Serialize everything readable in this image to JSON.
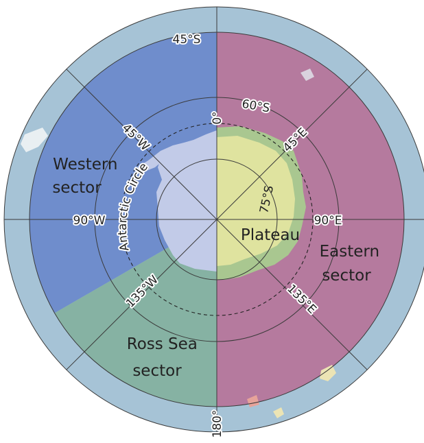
{
  "map": {
    "latitude_labels": {
      "lat45": "45°S",
      "lat60": "60°S",
      "lat75": "75°S"
    },
    "longitude_labels": {
      "lon0": "0°",
      "lon45e": "45°E",
      "lon90e": "90°E",
      "lon135e": "135°E",
      "lon180": "180°",
      "lon135w": "135°W",
      "lon90w": "90°W",
      "lon45w": "45°W"
    },
    "regions": {
      "western_line1": "Western",
      "western_line2": "sector",
      "eastern_line1": "Eastern",
      "eastern_line2": "sector",
      "ross_line1": "Ross Sea",
      "ross_line2": "sector",
      "plateau": "Plateau"
    },
    "antarctic_circle_label": "Antarctic Circle",
    "colors": {
      "ocean": "#a6c3d6",
      "western_sector": "#6f8dcc",
      "eastern_sector": "#b57a9e",
      "ross_sea_sector": "#86b2a3",
      "plateau": "#dfe39f",
      "west_antarctica": "#c2cbe8",
      "east_antarctica_coast": "#a9c790",
      "graticule": "#3a3a3a"
    }
  }
}
